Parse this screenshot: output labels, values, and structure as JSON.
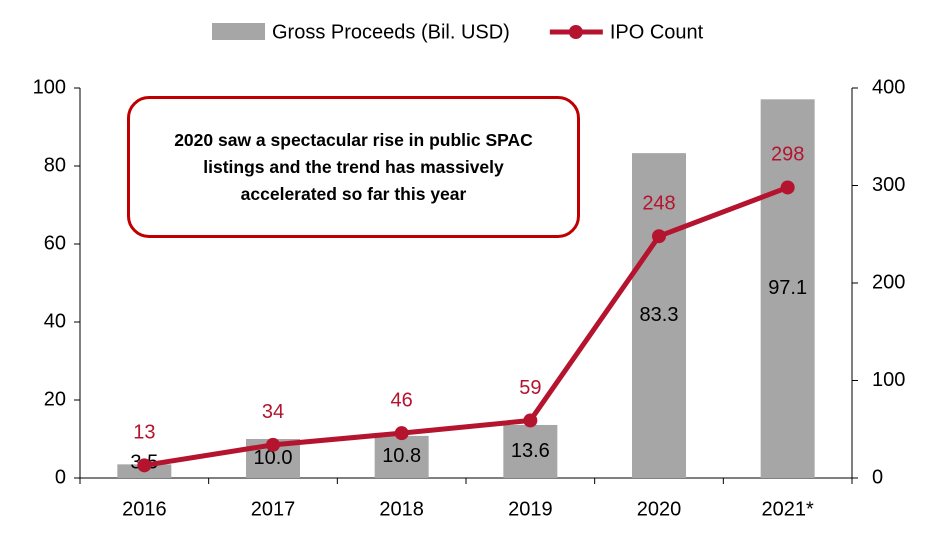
{
  "chart_data": {
    "type": "bar_line",
    "annotation": "2020 saw a spectacular rise in public SPAC listings and the trend has massively accelerated so far this year",
    "categories": [
      "2016",
      "2017",
      "2018",
      "2019",
      "2020",
      "2021*"
    ],
    "series": [
      {
        "name": "Gross Proceeds (Bil. USD)",
        "type": "bar",
        "color": "#a6a6a6",
        "values": [
          3.5,
          10.0,
          10.8,
          13.6,
          83.3,
          97.1
        ],
        "value_labels": [
          "3.5",
          "10.0",
          "10.8",
          "13.6",
          "83.3",
          "97.1"
        ]
      },
      {
        "name": "IPO Count",
        "type": "line",
        "axis": "y2",
        "color": "#b5142f",
        "values": [
          13,
          34,
          46,
          59,
          248,
          298
        ]
      }
    ],
    "ylim": [
      0,
      100
    ],
    "yticks": [
      0,
      20,
      40,
      60,
      80,
      100
    ],
    "y2lim": [
      0,
      400
    ],
    "y2ticks": [
      0,
      100,
      200,
      300,
      400
    ]
  }
}
